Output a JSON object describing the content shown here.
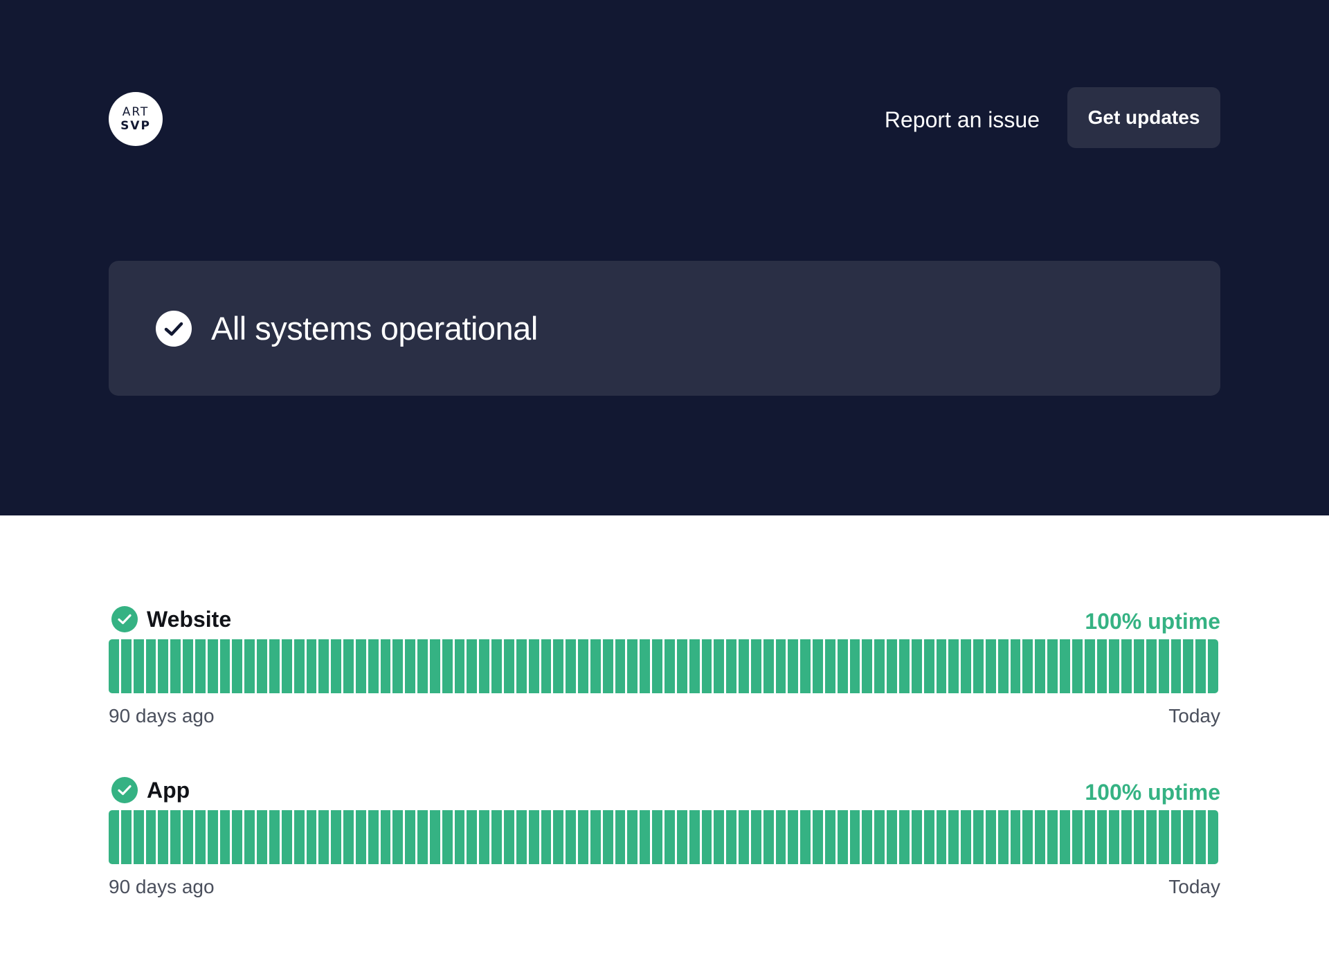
{
  "header": {
    "logo": {
      "line1": "ART",
      "line2": "SVP"
    },
    "report_label": "Report an issue",
    "updates_label": "Get updates"
  },
  "status": {
    "message": "All systems operational",
    "icon": "check-circle-icon"
  },
  "components": [
    {
      "name": "Website",
      "uptime_label": "100% uptime",
      "uptime_percent": 100,
      "days": 90,
      "range_start": "90 days ago",
      "range_end": "Today"
    },
    {
      "name": "App",
      "uptime_label": "100% uptime",
      "uptime_percent": 100,
      "days": 90,
      "range_start": "90 days ago",
      "range_end": "Today"
    }
  ],
  "colors": {
    "hero_bg": "#121832",
    "card_bg": "#2a2f45",
    "operational": "#35b283"
  }
}
